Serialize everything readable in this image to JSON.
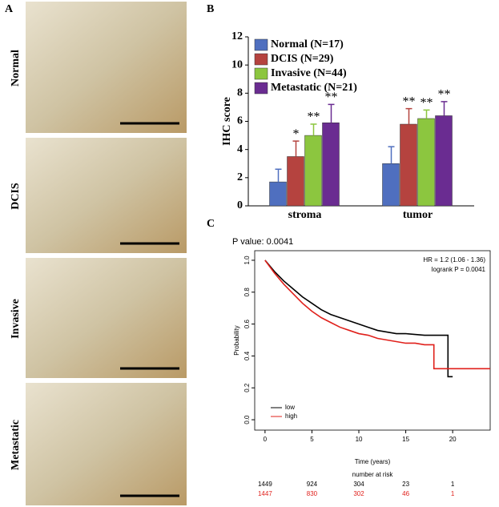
{
  "panel_labels": [
    "A",
    "B",
    "C"
  ],
  "images": {
    "labels": [
      "Normal",
      "DCIS",
      "Invasive",
      "Metastatic"
    ]
  },
  "chart_data": [
    {
      "type": "bar",
      "ylabel": "IHC score",
      "categories": [
        "stroma",
        "tumor"
      ],
      "ylim": [
        0,
        12
      ],
      "yticks": [
        0,
        2,
        4,
        6,
        8,
        10,
        12
      ],
      "legend": "top-left",
      "series": [
        {
          "name": "Normal (N=17)",
          "color": "#4f6fbf",
          "values": [
            1.7,
            3.0
          ],
          "errors": [
            0.9,
            1.2
          ],
          "annotations": [
            null,
            null
          ]
        },
        {
          "name": "DCIS (N=29)",
          "color": "#b5433f",
          "values": [
            3.5,
            5.8
          ],
          "errors": [
            1.1,
            1.1
          ],
          "annotations": [
            "*",
            "**"
          ]
        },
        {
          "name": "Invasive (N=44)",
          "color": "#8cc63f",
          "values": [
            5.0,
            6.2
          ],
          "errors": [
            0.8,
            0.6
          ],
          "annotations": [
            "**",
            "**"
          ]
        },
        {
          "name": "Metastatic (N=21)",
          "color": "#6a2c91",
          "values": [
            5.9,
            6.4
          ],
          "errors": [
            1.3,
            1.0
          ],
          "annotations": [
            "**",
            "**"
          ]
        }
      ]
    },
    {
      "type": "line",
      "title": "P value: 0.0041",
      "annotations": [
        "HR = 1.2 (1.06 - 1.36)",
        "logrank P = 0.0041"
      ],
      "xlabel": "Time (years)",
      "ylabel": "Probability",
      "xlim": [
        -1.1,
        24.0
      ],
      "ylim": [
        -0.065,
        1.06
      ],
      "xticks": [
        0,
        5,
        10,
        15,
        20
      ],
      "yticks": [
        {
          "value": 0,
          "label": "0.0"
        },
        0.2,
        0.4,
        0.6,
        0.8,
        {
          "value": 1,
          "label": "1.0"
        }
      ],
      "legend": "bottom-left",
      "series": [
        {
          "name": "low",
          "color": "#000000",
          "x": [
            0,
            1,
            2,
            3,
            4,
            5,
            6,
            7,
            8,
            9,
            10,
            11,
            12,
            13,
            14,
            15,
            17,
            19.5,
            19.5,
            20
          ],
          "values": [
            1,
            0.93,
            0.87,
            0.82,
            0.77,
            0.73,
            0.69,
            0.66,
            0.64,
            0.62,
            0.6,
            0.58,
            0.56,
            0.55,
            0.54,
            0.54,
            0.53,
            0.53,
            0.27,
            0.27
          ]
        },
        {
          "name": "high",
          "color": "#e0201b",
          "x": [
            0,
            1,
            2,
            3,
            4,
            5,
            6,
            7,
            8,
            9,
            10,
            11,
            12,
            13,
            14,
            15,
            16,
            17,
            18,
            18,
            24
          ],
          "values": [
            1,
            0.92,
            0.85,
            0.79,
            0.73,
            0.68,
            0.64,
            0.61,
            0.58,
            0.56,
            0.54,
            0.53,
            0.51,
            0.5,
            0.49,
            0.48,
            0.48,
            0.47,
            0.47,
            0.32,
            0.32
          ]
        }
      ],
      "risk_table": {
        "title": "number at risk",
        "rows": [
          {
            "color": "#000000",
            "values": [
              1449,
              924,
              304,
              23,
              1
            ]
          },
          {
            "color": "#e0201b",
            "values": [
              1447,
              830,
              302,
              46,
              1
            ]
          }
        ]
      }
    }
  ]
}
